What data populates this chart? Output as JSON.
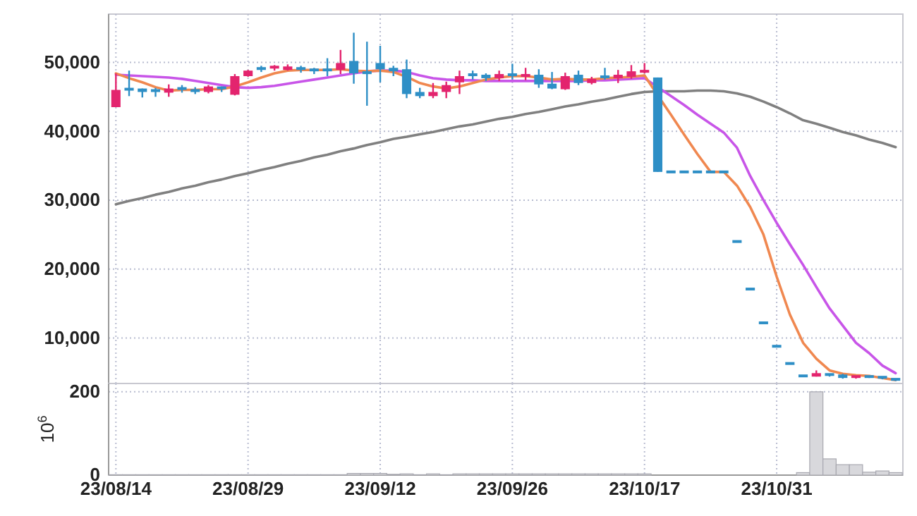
{
  "chart_data": [
    {
      "type": "candlestick",
      "categories": [
        null,
        null,
        null,
        null,
        null,
        null,
        null,
        null,
        null,
        null,
        null,
        null,
        null,
        null,
        null,
        null,
        null,
        null,
        null,
        null,
        null,
        null,
        null,
        null,
        null,
        null,
        null,
        null,
        null,
        null,
        null,
        null,
        null,
        null,
        null,
        null,
        null,
        null,
        null,
        null,
        null,
        null,
        null,
        null,
        null,
        null,
        null,
        null,
        null,
        null,
        null,
        null,
        null,
        null,
        null,
        null,
        null,
        null,
        null,
        null
      ],
      "ohlc": [
        [
          43500,
          48400,
          43500,
          46000
        ],
        [
          46100,
          48800,
          45100,
          45900
        ],
        [
          46200,
          46200,
          44900,
          45700
        ],
        [
          45900,
          46300,
          45000,
          45800
        ],
        [
          45600,
          46800,
          45000,
          46200
        ],
        [
          46200,
          46700,
          45600,
          46100
        ],
        [
          45900,
          46400,
          45400,
          45700
        ],
        [
          45700,
          46700,
          45500,
          46500
        ],
        [
          46300,
          46500,
          45700,
          46100
        ],
        [
          45300,
          48300,
          45200,
          48000
        ],
        [
          48000,
          48900,
          47900,
          48800
        ],
        [
          49100,
          49500,
          48600,
          49000
        ],
        [
          48900,
          49600,
          48800,
          49300
        ],
        [
          48900,
          49700,
          48800,
          49400
        ],
        [
          49100,
          49500,
          48500,
          48700
        ],
        [
          48900,
          49200,
          48300,
          48700
        ],
        [
          48900,
          50600,
          48000,
          48800
        ],
        [
          48900,
          51800,
          48300,
          49900
        ],
        [
          50200,
          54300,
          46900,
          48400
        ],
        [
          48500,
          53000,
          43700,
          48400
        ],
        [
          49900,
          52400,
          47100,
          49000
        ],
        [
          49200,
          49500,
          48000,
          48700
        ],
        [
          49000,
          50400,
          44800,
          45400
        ],
        [
          45700,
          46300,
          44800,
          45100
        ],
        [
          45100,
          47000,
          44800,
          45700
        ],
        [
          45700,
          47200,
          44800,
          46700
        ],
        [
          47100,
          48800,
          45400,
          48000
        ],
        [
          48200,
          48800,
          47500,
          48000
        ],
        [
          48200,
          48400,
          47300,
          47700
        ],
        [
          47700,
          48800,
          47300,
          48300
        ],
        [
          48200,
          49800,
          47500,
          48100
        ],
        [
          48000,
          49200,
          47400,
          48100
        ],
        [
          48200,
          49000,
          46300,
          46800
        ],
        [
          46900,
          48600,
          46100,
          46200
        ],
        [
          46100,
          48500,
          46000,
          48000
        ],
        [
          48200,
          48800,
          46700,
          47000
        ],
        [
          47000,
          47900,
          46800,
          47600
        ],
        [
          47900,
          49200,
          47500,
          47700
        ],
        [
          47700,
          48900,
          47000,
          48200
        ],
        [
          47900,
          49600,
          47600,
          48700
        ],
        [
          48500,
          49900,
          48400,
          48700
        ],
        [
          47800,
          47800,
          34100,
          34100
        ],
        [
          34100,
          34100,
          34100,
          34100
        ],
        [
          34100,
          34100,
          34100,
          34100
        ],
        [
          34100,
          34100,
          34100,
          34100
        ],
        [
          34100,
          34100,
          34100,
          34100
        ],
        [
          34100,
          34100,
          34100,
          34100
        ],
        [
          24000,
          24000,
          24000,
          24000
        ],
        [
          17100,
          17100,
          17100,
          17100
        ],
        [
          12200,
          12200,
          12200,
          12200
        ],
        [
          8800,
          8800,
          8800,
          8800
        ],
        [
          6300,
          6300,
          6300,
          6300
        ],
        [
          4500,
          4500,
          4500,
          4500
        ],
        [
          4400,
          5300,
          4400,
          4900
        ],
        [
          4700,
          4800,
          4400,
          4500
        ],
        [
          4700,
          4800,
          4100,
          4200
        ],
        [
          4200,
          4500,
          4100,
          4400
        ],
        [
          4400,
          4500,
          4200,
          4300
        ],
        [
          4300,
          4300,
          4000,
          4100
        ],
        [
          4000,
          4000,
          3750,
          3800
        ]
      ],
      "colors": [
        "#e3246e",
        "#2e8fc6",
        "#2e8fc6",
        "#2e8fc6",
        "#e3246e",
        "#2e8fc6",
        "#2e8fc6",
        "#e3246e",
        "#2e8fc6",
        "#e3246e",
        "#e3246e",
        "#2e8fc6",
        "#e3246e",
        "#e3246e",
        "#2e8fc6",
        "#2e8fc6",
        "#2e8fc6",
        "#e3246e",
        "#2e8fc6",
        "#2e8fc6",
        "#2e8fc6",
        "#2e8fc6",
        "#2e8fc6",
        "#2e8fc6",
        "#e3246e",
        "#e3246e",
        "#e3246e",
        "#2e8fc6",
        "#2e8fc6",
        "#e3246e",
        "#2e8fc6",
        "#e3246e",
        "#2e8fc6",
        "#2e8fc6",
        "#e3246e",
        "#2e8fc6",
        "#e3246e",
        "#2e8fc6",
        "#e3246e",
        "#e3246e",
        "#e3246e",
        "#2e8fc6",
        "#2e8fc6",
        "#2e8fc6",
        "#2e8fc6",
        "#2e8fc6",
        "#2e8fc6",
        "#2e8fc6",
        "#2e8fc6",
        "#2e8fc6",
        "#2e8fc6",
        "#2e8fc6",
        "#2e8fc6",
        "#e3246e",
        "#2e8fc6",
        "#2e8fc6",
        "#e3246e",
        "#2e8fc6",
        "#2e8fc6",
        "#2e8fc6"
      ],
      "series": [
        {
          "type": "line",
          "color": "#808080",
          "values": [
            29400,
            29900,
            30300,
            30800,
            31200,
            31700,
            32100,
            32600,
            33000,
            33500,
            33900,
            34400,
            34800,
            35300,
            35700,
            36200,
            36600,
            37100,
            37500,
            38000,
            38400,
            38900,
            39200,
            39550,
            39900,
            40300,
            40700,
            41000,
            41400,
            41800,
            42100,
            42500,
            42800,
            43200,
            43600,
            43900,
            44300,
            44600,
            45000,
            45400,
            45700,
            45800,
            45800,
            45800,
            45900,
            45900,
            45800,
            45500,
            45000,
            44300,
            43500,
            42600,
            41600,
            41100,
            40500,
            39900,
            39400,
            38800,
            38300,
            37700
          ]
        },
        {
          "type": "line",
          "color": "#c855e8",
          "values": [
            48200,
            48100,
            48000,
            47900,
            47800,
            47600,
            47300,
            47000,
            46700,
            46400,
            46300,
            46400,
            46600,
            46900,
            47200,
            47500,
            47800,
            48100,
            48400,
            48700,
            48800,
            48800,
            48600,
            48100,
            47700,
            47500,
            47400,
            47400,
            47300,
            47300,
            47300,
            47300,
            47300,
            47300,
            47300,
            47300,
            47400,
            47400,
            47500,
            47600,
            47700,
            46400,
            45100,
            43800,
            42400,
            41100,
            39800,
            37600,
            33500,
            30000,
            26700,
            23600,
            20600,
            17400,
            14300,
            11800,
            9300,
            7800,
            6000,
            4900
          ]
        },
        {
          "type": "line",
          "color": "#f08850",
          "values": [
            48400,
            47700,
            47100,
            46400,
            45900,
            46000,
            46000,
            46100,
            46100,
            46500,
            47100,
            47800,
            48400,
            48800,
            48900,
            48900,
            48900,
            49000,
            48800,
            48700,
            48800,
            48600,
            47900,
            47000,
            46500,
            46200,
            46500,
            47000,
            47500,
            47800,
            48000,
            48000,
            47800,
            47500,
            47600,
            47500,
            47500,
            47700,
            47800,
            47900,
            48100,
            45200,
            42400,
            39500,
            36700,
            34100,
            34100,
            32100,
            29000,
            25000,
            18900,
            13400,
            9300,
            7000,
            5300,
            4800,
            4600,
            4500,
            4200,
            3900
          ]
        }
      ],
      "ylim": [
        3400,
        57000
      ],
      "yticks": [
        {
          "value": 10000,
          "label": "10,000"
        },
        {
          "value": 20000,
          "label": "20,000"
        },
        {
          "value": 30000,
          "label": "30,000"
        },
        {
          "value": 40000,
          "label": "40,000"
        },
        {
          "value": 50000,
          "label": "50,000"
        }
      ],
      "grid": true
    },
    {
      "type": "bar",
      "categories": [
        "23/08/14",
        null,
        null,
        null,
        null,
        null,
        null,
        null,
        null,
        null,
        "23/08/29",
        null,
        null,
        null,
        null,
        null,
        null,
        null,
        null,
        null,
        "23/09/12",
        null,
        null,
        null,
        null,
        null,
        null,
        null,
        null,
        null,
        "23/09/26",
        null,
        null,
        null,
        null,
        null,
        null,
        null,
        null,
        null,
        "23/10/17",
        null,
        null,
        null,
        null,
        null,
        null,
        null,
        null,
        null,
        "23/10/31",
        null,
        null,
        null,
        null,
        null,
        null,
        null,
        null,
        null
      ],
      "values": [
        1,
        1,
        1,
        1,
        1,
        1,
        1,
        1,
        1,
        1,
        1,
        1,
        1,
        1,
        1,
        1,
        1,
        1,
        4,
        4,
        4,
        2,
        3,
        1,
        3,
        1,
        3,
        3,
        3,
        3,
        3,
        3,
        3,
        3,
        3,
        3,
        3,
        3,
        3,
        3,
        3,
        0,
        0,
        0,
        0,
        0,
        0,
        0,
        0,
        0,
        0,
        0,
        6,
        200,
        39,
        25,
        25,
        7,
        10,
        6
      ],
      "color": "#d8d8dc",
      "ylabel": "10$^{6}$",
      "ylim": [
        0,
        220
      ],
      "yticks": [
        0,
        200
      ],
      "grid": true
    }
  ]
}
